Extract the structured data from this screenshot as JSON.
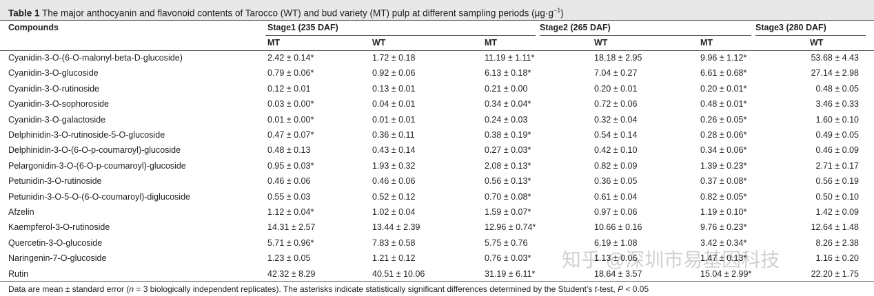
{
  "title": {
    "label": "Table 1",
    "text": "The major anthocyanin and flavonoid contents of Tarocco (WT) and bud variety (MT) pulp at different sampling periods (μg·g",
    "sup": "−1",
    "end": ")"
  },
  "table": {
    "header": {
      "compound": "Compounds",
      "stages": [
        "Stage1 (235 DAF)",
        "Stage2 (265 DAF)",
        "Stage3 (280 DAF)"
      ],
      "subheaders": [
        "MT",
        "WT",
        "MT",
        "WT",
        "MT",
        "WT"
      ]
    },
    "rows": [
      [
        "Cyanidin-3-O-(6-O-malonyl-beta-D-glucoside)",
        "2.42 ± 0.14*",
        "1.72 ± 0.18",
        "11.19 ± 1.11*",
        "18.18 ± 2.95",
        "9.96 ± 1.12*",
        "53.68 ± 4.43"
      ],
      [
        "Cyanidin-3-O-glucoside",
        "0.79 ± 0.06*",
        "0.92 ± 0.06",
        "6.13 ± 0.18*",
        "7.04 ± 0.27",
        "6.61 ± 0.68*",
        "27.14 ± 2.98"
      ],
      [
        "Cyanidin-3-O-rutinoside",
        "0.12 ± 0.01",
        "0.13 ± 0.01",
        "0.21 ± 0.00",
        "0.20 ± 0.01",
        "0.20 ± 0.01*",
        "0.48 ± 0.05"
      ],
      [
        "Cyanidin-3-O-sophoroside",
        "0.03 ± 0.00*",
        "0.04 ± 0.01",
        "0.34 ± 0.04*",
        "0.72 ± 0.06",
        "0.48 ± 0.01*",
        "3.46 ± 0.33"
      ],
      [
        "Cyanidin-3-O-galactoside",
        "0.01 ± 0.00*",
        "0.01 ± 0.01",
        "0.24 ± 0.03",
        "0.32 ± 0.04",
        "0.26 ± 0.05*",
        "1.60 ± 0.10"
      ],
      [
        "Delphinidin-3-O-rutinoside-5-O-glucoside",
        "0.47 ± 0.07*",
        "0.36 ± 0.11",
        "0.38 ± 0.19*",
        "0.54 ± 0.14",
        "0.28 ± 0.06*",
        "0.49 ± 0.05"
      ],
      [
        "Delphinidin-3-O-(6-O-p-coumaroyl)-glucoside",
        "0.48 ± 0.13",
        "0.43 ± 0.14",
        "0.27 ± 0.03*",
        "0.42 ± 0.10",
        "0.34 ± 0.06*",
        "0.46 ± 0.09"
      ],
      [
        "Pelargonidin-3-O-(6-O-p-coumaroyl)-glucoside",
        "0.95 ± 0.03*",
        "1.93 ± 0.32",
        "2.08 ± 0.13*",
        "0.82 ± 0.09",
        "1.39 ± 0.23*",
        "2.71 ± 0.17"
      ],
      [
        "Petunidin-3-O-rutinoside",
        "0.46 ± 0.06",
        "0.46 ± 0.06",
        "0.56 ± 0.13*",
        "0.36 ± 0.05",
        "0.37 ± 0.08*",
        "0.56 ± 0.19"
      ],
      [
        "Petunidin-3-O-5-O-(6-O-coumaroyl)-diglucoside",
        "0.55 ± 0.03",
        "0.52 ± 0.12",
        "0.70 ± 0.08*",
        "0.61 ± 0.04",
        "0.82 ± 0.05*",
        "0.50 ± 0.10"
      ],
      [
        "Afzelin",
        "1.12 ± 0.04*",
        "1.02 ± 0.04",
        "1.59 ± 0.07*",
        "0.97 ± 0.06",
        "1.19 ± 0.10*",
        "1.42 ± 0.09"
      ],
      [
        "Kaempferol-3-O-rutinoside",
        "14.31 ± 2.57",
        "13.44 ± 2.39",
        "12.96 ± 0.74*",
        "10.66 ± 0.16",
        "9.76 ± 0.23*",
        "12.64 ± 1.48"
      ],
      [
        "Quercetin-3-O-glucoside",
        "5.71 ± 0.96*",
        "7.83 ± 0.58",
        "5.75 ± 0.76",
        "6.19 ± 1.08",
        "3.42 ± 0.34*",
        "8.26 ± 2.38"
      ],
      [
        "Naringenin-7-O-glucoside",
        "1.23 ± 0.05",
        "1.21 ± 0.12",
        "0.76 ± 0.03*",
        "1.13 ± 0.06",
        "1.47 ± 0.13*",
        "1.16 ± 0.20"
      ],
      [
        "Rutin",
        "42.32 ± 8.29",
        "40.51 ± 10.06",
        "31.19 ± 6.11*",
        "18.64 ± 3.57",
        "15.04 ± 2.99*",
        "22.20 ± 1.75"
      ]
    ]
  },
  "footnote": [
    "Data are mean ± standard error (",
    "n",
    " = 3 biologically independent replicates). The asterisks indicate statistically significant differences determined by the Student’s ",
    "t",
    "-test, ",
    "P",
    " < 0.05"
  ],
  "watermark": "知乎 @深圳市易基因科技"
}
